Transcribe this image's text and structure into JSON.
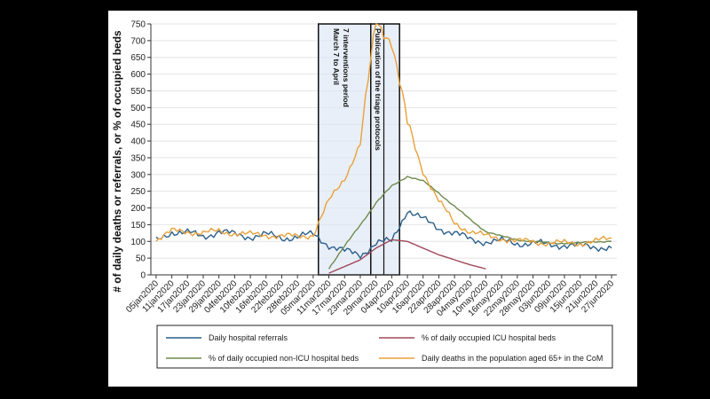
{
  "colors": {
    "referrals": "#2b5f8a",
    "icu": "#a0495a",
    "non_icu": "#6d8a4e",
    "deaths": "#e8a13a",
    "shade": "#dde6f5"
  },
  "chart_data": {
    "type": "line",
    "title": "",
    "xlabel": "",
    "ylabel": "# of daily deaths or referrals, or % of occupied beds",
    "ylim": [
      0,
      750
    ],
    "yticks": [
      0,
      50,
      100,
      150,
      200,
      250,
      300,
      350,
      400,
      450,
      500,
      550,
      600,
      650,
      700,
      750
    ],
    "x_tick_labels": [
      "05jan2020",
      "11jan2020",
      "17jan2020",
      "23jan2020",
      "29jan2020",
      "04feb2020",
      "10feb2020",
      "16feb2020",
      "22feb2020",
      "28feb2020",
      "05mar2020",
      "11mar2020",
      "17mar2020",
      "23mar2020",
      "29mar2020",
      "04apr2020",
      "10apr2020",
      "16apr2020",
      "22apr2020",
      "28apr2020",
      "04may2020",
      "10may2020",
      "16may2020",
      "22may2020",
      "28may2020",
      "03jun2020",
      "09jun2020",
      "15jun2020",
      "21jun2020",
      "27jun2020"
    ],
    "x": [
      "05jan2020",
      "11jan2020",
      "17jan2020",
      "23jan2020",
      "29jan2020",
      "04feb2020",
      "10feb2020",
      "16feb2020",
      "22feb2020",
      "28feb2020",
      "05mar2020",
      "11mar2020",
      "17mar2020",
      "23mar2020",
      "29mar2020",
      "04apr2020",
      "10apr2020",
      "16apr2020",
      "22apr2020",
      "28apr2020",
      "04may2020",
      "10may2020",
      "16may2020",
      "22may2020",
      "28may2020",
      "03jun2020",
      "09jun2020",
      "15jun2020",
      "21jun2020",
      "27jun2020"
    ],
    "series": [
      {
        "name": "Daily hospital referrals",
        "color_key": "referrals",
        "values": [
          100,
          130,
          125,
          115,
          130,
          120,
          115,
          120,
          110,
          115,
          120,
          90,
          70,
          60,
          95,
          100,
          195,
          165,
          140,
          125,
          105,
          100,
          100,
          95,
          95,
          90,
          90,
          85,
          85,
          80
        ]
      },
      {
        "name": "% of daily occupied ICU hospital beds",
        "color_key": "icu",
        "values": [
          null,
          null,
          null,
          null,
          null,
          null,
          null,
          null,
          null,
          null,
          null,
          5,
          25,
          45,
          80,
          105,
          100,
          80,
          60,
          45,
          30,
          18,
          null,
          null,
          null,
          null,
          null,
          null,
          null,
          null
        ]
      },
      {
        "name": "% of daily occupied non-ICU hospital beds",
        "color_key": "non_icu",
        "values": [
          null,
          null,
          null,
          null,
          null,
          null,
          null,
          null,
          null,
          null,
          null,
          20,
          85,
          150,
          215,
          265,
          295,
          280,
          245,
          205,
          165,
          130,
          115,
          105,
          100,
          95,
          95,
          95,
          100,
          100
        ]
      },
      {
        "name": "Daily deaths in the population aged 65+ in the CoM",
        "color_key": "deaths",
        "values": [
          105,
          130,
          130,
          125,
          130,
          125,
          120,
          120,
          115,
          115,
          120,
          220,
          290,
          390,
          760,
          700,
          450,
          310,
          220,
          155,
          130,
          115,
          110,
          100,
          100,
          95,
          95,
          95,
          100,
          110
        ]
      }
    ],
    "periods": [
      {
        "start": "07mar2020",
        "end": "27mar2020",
        "label": "March 7 to April 7 interventions period"
      },
      {
        "start": "27mar2020",
        "end": "07apr2020",
        "label": "Publication of the triage protocols"
      }
    ],
    "legend_position": "bottom",
    "grid": true
  }
}
